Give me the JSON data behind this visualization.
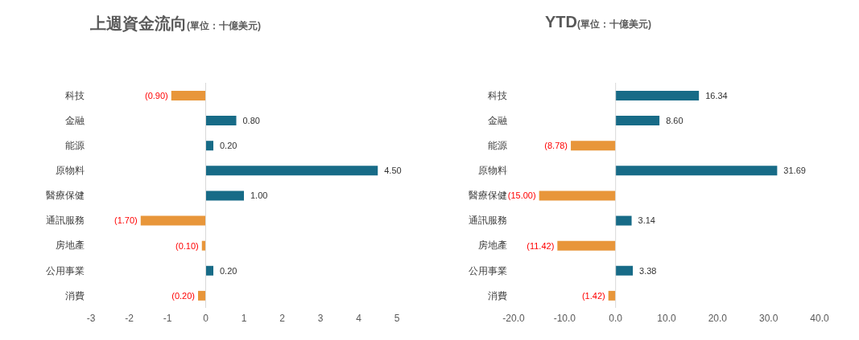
{
  "chart_data": [
    {
      "type": "bar",
      "orientation": "horizontal",
      "title": "上週資金流向",
      "subtitle": "(單位：十億美元)",
      "categories": [
        "科技",
        "金融",
        "能源",
        "原物料",
        "醫療保健",
        "通訊服務",
        "房地產",
        "公用事業",
        "消費"
      ],
      "values": [
        -0.9,
        0.8,
        0.2,
        4.5,
        1.0,
        -1.7,
        -0.1,
        0.2,
        -0.2
      ],
      "colors": [
        "#e8963a",
        "#176b87",
        "#176b87",
        "#176b87",
        "#176b87",
        "#e8963a",
        "#e8963a",
        "#176b87",
        "#e8963a"
      ],
      "value_labels": [
        "(0.90)",
        "0.80",
        "0.20",
        "4.50",
        "1.00",
        "(1.70)",
        "(0.10)",
        "0.20",
        "(0.20)"
      ],
      "xlim": [
        -3,
        5
      ],
      "xticks": [
        -3,
        -2,
        -1,
        0,
        1,
        2,
        3,
        4,
        5
      ],
      "ref_lines": [
        {
          "axis": "x",
          "value": 0,
          "color": "#d9d9d9"
        }
      ],
      "grid": false,
      "legend": false
    },
    {
      "type": "bar",
      "orientation": "horizontal",
      "title": "YTD",
      "subtitle": "(單位：十億美元)",
      "categories": [
        "科技",
        "金融",
        "能源",
        "原物料",
        "醫療保健",
        "通訊服務",
        "房地產",
        "公用事業",
        "消費"
      ],
      "values": [
        16.34,
        8.6,
        -8.78,
        31.69,
        -15.0,
        3.14,
        -11.42,
        3.38,
        -1.42
      ],
      "colors": [
        "#176b87",
        "#176b87",
        "#e8963a",
        "#176b87",
        "#e8963a",
        "#176b87",
        "#e8963a",
        "#176b87",
        "#e8963a"
      ],
      "value_labels": [
        "16.34",
        "8.60",
        "(8.78)",
        "31.69",
        "(15.00)",
        "3.14",
        "(11.42)",
        "3.38",
        "(1.42)"
      ],
      "xlim": [
        -20,
        40
      ],
      "xticks": [
        {
          "value": -20,
          "label": "-20.0"
        },
        {
          "value": -10,
          "label": "-10.0"
        },
        {
          "value": 0,
          "label": "0.0"
        },
        {
          "value": 10,
          "label": "10.0"
        },
        {
          "value": 20,
          "label": "20.0"
        },
        {
          "value": 30,
          "label": "30.0"
        },
        {
          "value": 40,
          "label": "40.0"
        }
      ],
      "ref_lines": [
        {
          "axis": "x",
          "value": 0,
          "color": "#d9d9d9"
        }
      ],
      "grid": false,
      "legend": false
    }
  ]
}
